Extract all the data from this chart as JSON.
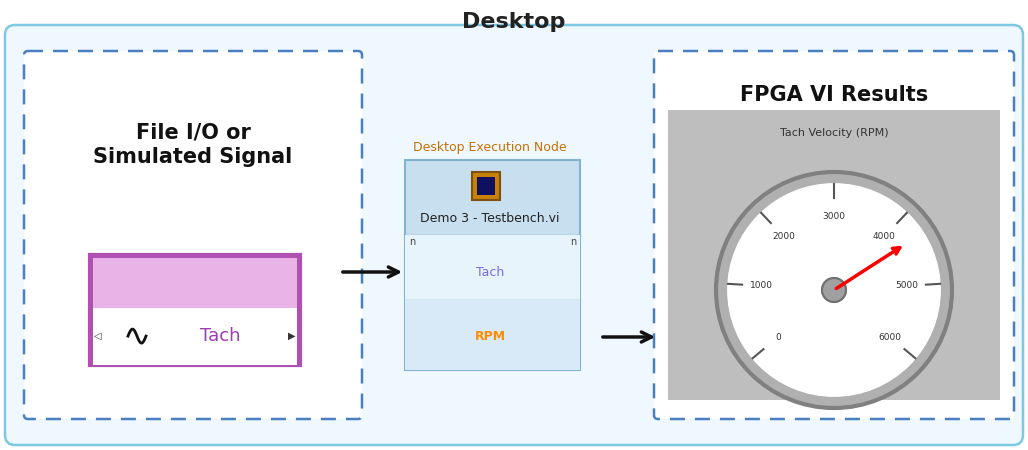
{
  "bg_color": "#ffffff",
  "outer_box_edge": "#7ec8e3",
  "outer_box_bg": "#f0f8ff",
  "dashed_box_edge": "#4a7fc1",
  "title_desktop": "Desktop",
  "title_file_io": "File I/O or\nSimulated Signal",
  "title_fpga": "FPGA VI Results",
  "node_label": "Desktop Execution Node",
  "node_vi": "Demo 3 - Testbench.vi",
  "node_tach_color": "#7b68ee",
  "node_rpm_color": "#ff8c00",
  "node_bg": "#c8dff0",
  "node_row_bg": "#d8eaf8",
  "gauge_bg": "#bebebe",
  "gauge_face": "#e8e8e8",
  "gauge_title": "Tach Velocity (RPM)",
  "tach_signal_bg": "#e8a8e8",
  "tach_signal_border": "#b050b0",
  "tach_upper_bg": "#e8b4e8",
  "tach_text_color": "#9b40b0",
  "arrow_color": "#111111",
  "icon_orange": "#c8820a",
  "node_label_color": "#c87000"
}
